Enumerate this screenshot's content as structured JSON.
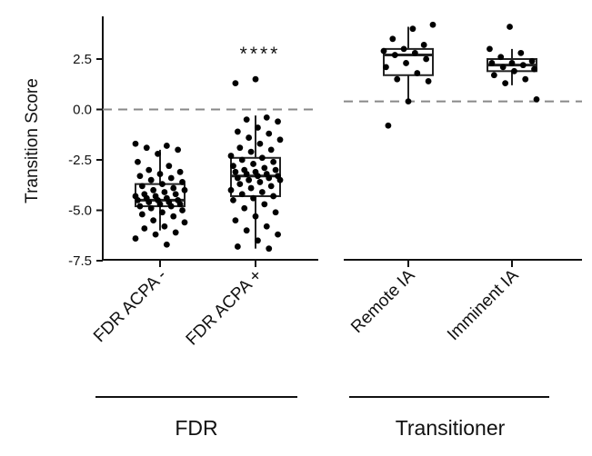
{
  "chart_data": [
    {
      "type": "box",
      "panel": "FDR",
      "ylabel": "Transition Score",
      "ylim": [
        -7.5,
        4.5
      ],
      "yticks": [
        "2.5",
        "0.0",
        "-2.5",
        "-5.0",
        "-7.5"
      ],
      "threshold": 0.0,
      "categories": [
        "FDR ACPA -",
        "FDR ACPA +"
      ],
      "group_label": "FDR",
      "annotation": "****",
      "series": [
        {
          "box": {
            "q1": -4.8,
            "median": -4.5,
            "q3": -3.7,
            "whisker_low": -6.0,
            "whisker_high": -2.0
          },
          "points": [
            -1.7,
            -1.8,
            -1.9,
            -2.0,
            -2.2,
            -2.6,
            -2.8,
            -3.0,
            -3.1,
            -3.2,
            -3.3,
            -3.4,
            -3.5,
            -3.6,
            -3.7,
            -3.8,
            -3.9,
            -4.0,
            -4.0,
            -4.1,
            -4.2,
            -4.2,
            -4.3,
            -4.3,
            -4.4,
            -4.4,
            -4.5,
            -4.5,
            -4.5,
            -4.6,
            -4.6,
            -4.7,
            -4.7,
            -4.8,
            -4.8,
            -4.9,
            -5.0,
            -5.1,
            -5.2,
            -5.3,
            -5.5,
            -5.6,
            -5.8,
            -5.9,
            -6.1,
            -6.2,
            -6.4,
            -6.7
          ]
        },
        {
          "box": {
            "q1": -4.3,
            "median": -3.3,
            "q3": -2.4,
            "whisker_low": -6.9,
            "whisker_high": -0.3
          },
          "points": [
            1.5,
            1.3,
            -0.4,
            -0.5,
            -0.6,
            -0.9,
            -1.1,
            -1.2,
            -1.4,
            -1.5,
            -1.7,
            -1.9,
            -2.0,
            -2.1,
            -2.3,
            -2.4,
            -2.5,
            -2.6,
            -2.7,
            -2.8,
            -2.9,
            -3.0,
            -3.0,
            -3.1,
            -3.1,
            -3.2,
            -3.2,
            -3.3,
            -3.3,
            -3.4,
            -3.4,
            -3.5,
            -3.5,
            -3.6,
            -3.7,
            -3.8,
            -3.9,
            -4.0,
            -4.1,
            -4.2,
            -4.3,
            -4.4,
            -4.5,
            -4.7,
            -4.9,
            -5.1,
            -5.3,
            -5.5,
            -5.8,
            -6.0,
            -6.2,
            -6.5,
            -6.8,
            -6.9
          ]
        }
      ]
    },
    {
      "type": "box",
      "panel": "Transitioner",
      "threshold": 0.4,
      "categories": [
        "Remote IA",
        "Imminent IA"
      ],
      "group_label": "Transitioner",
      "series": [
        {
          "box": {
            "q1": 1.7,
            "median": 2.7,
            "q3": 3.0,
            "whisker_low": 0.3,
            "whisker_high": 4.1
          },
          "points": [
            4.2,
            4.0,
            3.5,
            3.2,
            3.0,
            2.9,
            2.8,
            2.7,
            2.5,
            2.3,
            2.1,
            1.8,
            1.5,
            1.4,
            0.4,
            -0.8
          ]
        },
        {
          "box": {
            "q1": 1.9,
            "median": 2.2,
            "q3": 2.5,
            "whisker_low": 1.2,
            "whisker_high": 3.0
          },
          "points": [
            4.1,
            3.0,
            2.8,
            2.6,
            2.4,
            2.3,
            2.3,
            2.2,
            2.1,
            2.0,
            1.9,
            1.7,
            1.5,
            1.3,
            0.5
          ]
        }
      ]
    }
  ]
}
